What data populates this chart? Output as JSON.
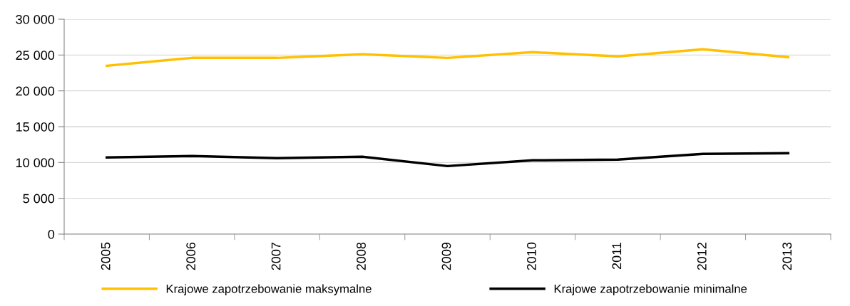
{
  "chart_data": {
    "type": "line",
    "categories": [
      "2005",
      "2006",
      "2007",
      "2008",
      "2009",
      "2010",
      "2011",
      "2012",
      "2013"
    ],
    "series": [
      {
        "name": "Krajowe zapotrzebowanie maksymalne",
        "color": "#ffc000",
        "values": [
          23500,
          24600,
          24600,
          25100,
          24600,
          25400,
          24800,
          25800,
          24700
        ]
      },
      {
        "name": "Krajowe zapotrzebowanie minimalne",
        "color": "#000000",
        "values": [
          10700,
          10900,
          10600,
          10800,
          9500,
          10300,
          10400,
          11200,
          11300
        ]
      }
    ],
    "ylim": [
      0,
      30000
    ],
    "yticks": [
      0,
      {
        "value": 5000,
        "label": "5 000"
      },
      {
        "value": 10000,
        "label": "10 000"
      },
      {
        "value": 15000,
        "label": "15 000"
      },
      {
        "value": 20000,
        "label": "20 000"
      },
      {
        "value": 25000,
        "label": "25 000"
      },
      {
        "value": 30000,
        "label": "30 000"
      }
    ],
    "grid": "y",
    "legend": "bottom",
    "marker": "none",
    "line_style": "solid"
  }
}
